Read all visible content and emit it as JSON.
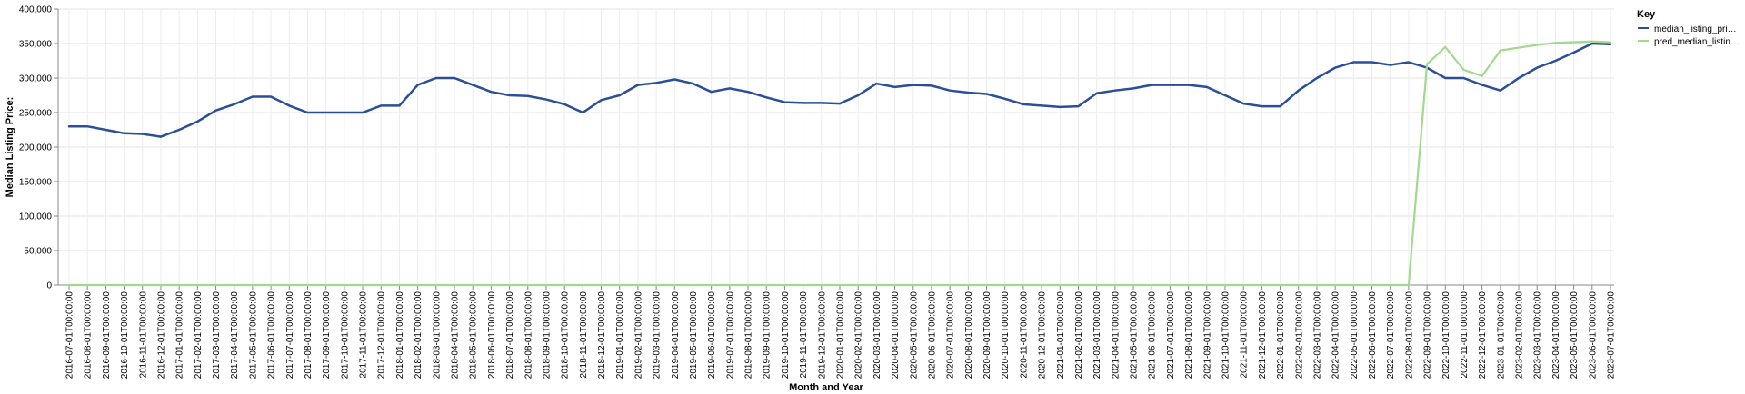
{
  "chart_data": {
    "type": "line",
    "xlabel": "Month and Year",
    "ylabel": "Median Listing Price:",
    "ylim": [
      0,
      400000
    ],
    "yticks": [
      0,
      50000,
      100000,
      150000,
      200000,
      250000,
      300000,
      350000,
      400000
    ],
    "ytick_labels": [
      "0",
      "50,000",
      "100,000",
      "150,000",
      "200,000",
      "250,000",
      "300,000",
      "350,000",
      "400,000"
    ],
    "grid": true,
    "legend_position": "right",
    "legend_title": "Key",
    "x": [
      "2016-07-01T00:00:00",
      "2016-08-01T00:00:00",
      "2016-09-01T00:00:00",
      "2016-10-01T00:00:00",
      "2016-11-01T00:00:00",
      "2016-12-01T00:00:00",
      "2017-01-01T00:00:00",
      "2017-02-01T00:00:00",
      "2017-03-01T00:00:00",
      "2017-04-01T00:00:00",
      "2017-05-01T00:00:00",
      "2017-06-01T00:00:00",
      "2017-07-01T00:00:00",
      "2017-08-01T00:00:00",
      "2017-09-01T00:00:00",
      "2017-10-01T00:00:00",
      "2017-11-01T00:00:00",
      "2017-12-01T00:00:00",
      "2018-01-01T00:00:00",
      "2018-02-01T00:00:00",
      "2018-03-01T00:00:00",
      "2018-04-01T00:00:00",
      "2018-05-01T00:00:00",
      "2018-06-01T00:00:00",
      "2018-07-01T00:00:00",
      "2018-08-01T00:00:00",
      "2018-09-01T00:00:00",
      "2018-10-01T00:00:00",
      "2018-11-01T00:00:00",
      "2018-12-01T00:00:00",
      "2019-01-01T00:00:00",
      "2019-02-01T00:00:00",
      "2019-03-01T00:00:00",
      "2019-04-01T00:00:00",
      "2019-05-01T00:00:00",
      "2019-06-01T00:00:00",
      "2019-07-01T00:00:00",
      "2019-08-01T00:00:00",
      "2019-09-01T00:00:00",
      "2019-10-01T00:00:00",
      "2019-11-01T00:00:00",
      "2019-12-01T00:00:00",
      "2020-01-01T00:00:00",
      "2020-02-01T00:00:00",
      "2020-03-01T00:00:00",
      "2020-04-01T00:00:00",
      "2020-05-01T00:00:00",
      "2020-06-01T00:00:00",
      "2020-07-01T00:00:00",
      "2020-08-01T00:00:00",
      "2020-09-01T00:00:00",
      "2020-10-01T00:00:00",
      "2020-11-01T00:00:00",
      "2020-12-01T00:00:00",
      "2021-01-01T00:00:00",
      "2021-02-01T00:00:00",
      "2021-03-01T00:00:00",
      "2021-04-01T00:00:00",
      "2021-05-01T00:00:00",
      "2021-06-01T00:00:00",
      "2021-07-01T00:00:00",
      "2021-08-01T00:00:00",
      "2021-09-01T00:00:00",
      "2021-10-01T00:00:00",
      "2021-11-01T00:00:00",
      "2021-12-01T00:00:00",
      "2022-01-01T00:00:00",
      "2022-02-01T00:00:00",
      "2022-03-01T00:00:00",
      "2022-04-01T00:00:00",
      "2022-05-01T00:00:00",
      "2022-06-01T00:00:00",
      "2022-07-01T00:00:00",
      "2022-08-01T00:00:00",
      "2022-09-01T00:00:00",
      "2022-10-01T00:00:00",
      "2022-11-01T00:00:00",
      "2022-12-01T00:00:00",
      "2023-01-01T00:00:00",
      "2023-02-01T00:00:00",
      "2023-03-01T00:00:00",
      "2023-04-01T00:00:00",
      "2023-05-01T00:00:00",
      "2023-06-01T00:00:00",
      "2023-07-01T00:00:00"
    ],
    "series": [
      {
        "name": "median_listing_pri…",
        "color": "#2b4f96",
        "values": [
          230000,
          230000,
          225000,
          220000,
          219000,
          215000,
          225000,
          237000,
          253000,
          262000,
          273000,
          273000,
          260000,
          250000,
          250000,
          250000,
          250000,
          260000,
          260000,
          290000,
          300000,
          300000,
          290000,
          280000,
          275000,
          274000,
          269000,
          262000,
          250000,
          268000,
          275000,
          290000,
          293000,
          298000,
          292000,
          280000,
          285000,
          280000,
          272000,
          265000,
          264000,
          264000,
          263000,
          275000,
          292000,
          287000,
          290000,
          289000,
          282000,
          279000,
          277000,
          270000,
          262000,
          260000,
          258000,
          259000,
          278000,
          282000,
          285000,
          290000,
          290000,
          290000,
          287000,
          275000,
          263000,
          259000,
          259000,
          282000,
          300000,
          315000,
          323000,
          323000,
          319000,
          323000,
          315000,
          300000,
          300000,
          290000,
          282000,
          300000,
          315000,
          325000,
          337000,
          350000,
          349000
        ]
      },
      {
        "name": "pred_median_listin…",
        "color": "#a2d98f",
        "values": [
          0,
          0,
          0,
          0,
          0,
          0,
          0,
          0,
          0,
          0,
          0,
          0,
          0,
          0,
          0,
          0,
          0,
          0,
          0,
          0,
          0,
          0,
          0,
          0,
          0,
          0,
          0,
          0,
          0,
          0,
          0,
          0,
          0,
          0,
          0,
          0,
          0,
          0,
          0,
          0,
          0,
          0,
          0,
          0,
          0,
          0,
          0,
          0,
          0,
          0,
          0,
          0,
          0,
          0,
          0,
          0,
          0,
          0,
          0,
          0,
          0,
          0,
          0,
          0,
          0,
          0,
          0,
          0,
          0,
          0,
          0,
          0,
          0,
          0,
          320000,
          345000,
          312000,
          303000,
          340000,
          344000,
          348000,
          351000,
          352000,
          353000,
          352000
        ]
      }
    ]
  }
}
